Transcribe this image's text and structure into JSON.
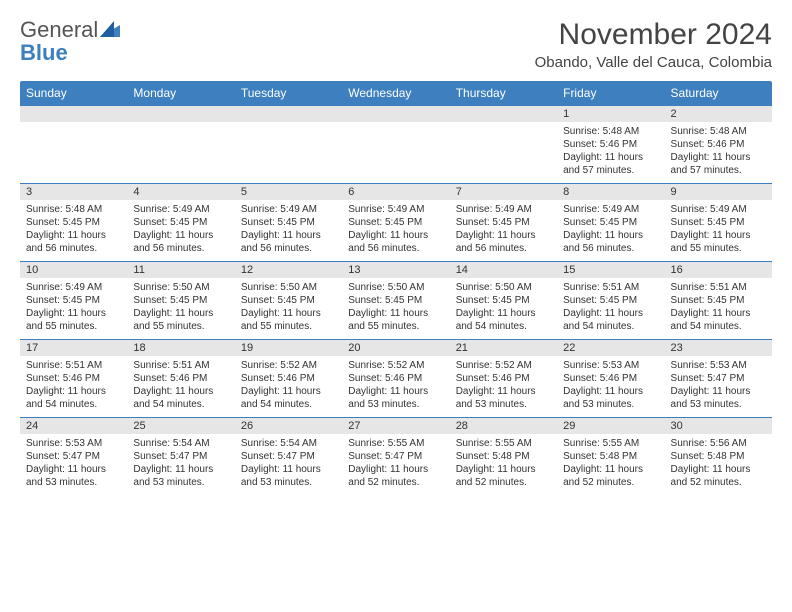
{
  "brand": {
    "line1": "General",
    "line2": "Blue"
  },
  "title": "November 2024",
  "location": "Obando, Valle del Cauca, Colombia",
  "colors": {
    "header_bg": "#3d7fbf",
    "header_text": "#ffffff",
    "daynum_bg": "#e6e6e6",
    "row_divider": "#3d7fbf",
    "body_text": "#333333",
    "page_bg": "#ffffff"
  },
  "typography": {
    "title_fontsize": 30,
    "location_fontsize": 15,
    "dayheader_fontsize": 12,
    "daynum_fontsize": 11,
    "cell_fontsize": 10
  },
  "day_headers": [
    "Sunday",
    "Monday",
    "Tuesday",
    "Wednesday",
    "Thursday",
    "Friday",
    "Saturday"
  ],
  "weeks": [
    [
      {
        "n": "",
        "lines": []
      },
      {
        "n": "",
        "lines": []
      },
      {
        "n": "",
        "lines": []
      },
      {
        "n": "",
        "lines": []
      },
      {
        "n": "",
        "lines": []
      },
      {
        "n": "1",
        "lines": [
          "Sunrise: 5:48 AM",
          "Sunset: 5:46 PM",
          "Daylight: 11 hours and 57 minutes."
        ]
      },
      {
        "n": "2",
        "lines": [
          "Sunrise: 5:48 AM",
          "Sunset: 5:46 PM",
          "Daylight: 11 hours and 57 minutes."
        ]
      }
    ],
    [
      {
        "n": "3",
        "lines": [
          "Sunrise: 5:48 AM",
          "Sunset: 5:45 PM",
          "Daylight: 11 hours and 56 minutes."
        ]
      },
      {
        "n": "4",
        "lines": [
          "Sunrise: 5:49 AM",
          "Sunset: 5:45 PM",
          "Daylight: 11 hours and 56 minutes."
        ]
      },
      {
        "n": "5",
        "lines": [
          "Sunrise: 5:49 AM",
          "Sunset: 5:45 PM",
          "Daylight: 11 hours and 56 minutes."
        ]
      },
      {
        "n": "6",
        "lines": [
          "Sunrise: 5:49 AM",
          "Sunset: 5:45 PM",
          "Daylight: 11 hours and 56 minutes."
        ]
      },
      {
        "n": "7",
        "lines": [
          "Sunrise: 5:49 AM",
          "Sunset: 5:45 PM",
          "Daylight: 11 hours and 56 minutes."
        ]
      },
      {
        "n": "8",
        "lines": [
          "Sunrise: 5:49 AM",
          "Sunset: 5:45 PM",
          "Daylight: 11 hours and 56 minutes."
        ]
      },
      {
        "n": "9",
        "lines": [
          "Sunrise: 5:49 AM",
          "Sunset: 5:45 PM",
          "Daylight: 11 hours and 55 minutes."
        ]
      }
    ],
    [
      {
        "n": "10",
        "lines": [
          "Sunrise: 5:49 AM",
          "Sunset: 5:45 PM",
          "Daylight: 11 hours and 55 minutes."
        ]
      },
      {
        "n": "11",
        "lines": [
          "Sunrise: 5:50 AM",
          "Sunset: 5:45 PM",
          "Daylight: 11 hours and 55 minutes."
        ]
      },
      {
        "n": "12",
        "lines": [
          "Sunrise: 5:50 AM",
          "Sunset: 5:45 PM",
          "Daylight: 11 hours and 55 minutes."
        ]
      },
      {
        "n": "13",
        "lines": [
          "Sunrise: 5:50 AM",
          "Sunset: 5:45 PM",
          "Daylight: 11 hours and 55 minutes."
        ]
      },
      {
        "n": "14",
        "lines": [
          "Sunrise: 5:50 AM",
          "Sunset: 5:45 PM",
          "Daylight: 11 hours and 54 minutes."
        ]
      },
      {
        "n": "15",
        "lines": [
          "Sunrise: 5:51 AM",
          "Sunset: 5:45 PM",
          "Daylight: 11 hours and 54 minutes."
        ]
      },
      {
        "n": "16",
        "lines": [
          "Sunrise: 5:51 AM",
          "Sunset: 5:45 PM",
          "Daylight: 11 hours and 54 minutes."
        ]
      }
    ],
    [
      {
        "n": "17",
        "lines": [
          "Sunrise: 5:51 AM",
          "Sunset: 5:46 PM",
          "Daylight: 11 hours and 54 minutes."
        ]
      },
      {
        "n": "18",
        "lines": [
          "Sunrise: 5:51 AM",
          "Sunset: 5:46 PM",
          "Daylight: 11 hours and 54 minutes."
        ]
      },
      {
        "n": "19",
        "lines": [
          "Sunrise: 5:52 AM",
          "Sunset: 5:46 PM",
          "Daylight: 11 hours and 54 minutes."
        ]
      },
      {
        "n": "20",
        "lines": [
          "Sunrise: 5:52 AM",
          "Sunset: 5:46 PM",
          "Daylight: 11 hours and 53 minutes."
        ]
      },
      {
        "n": "21",
        "lines": [
          "Sunrise: 5:52 AM",
          "Sunset: 5:46 PM",
          "Daylight: 11 hours and 53 minutes."
        ]
      },
      {
        "n": "22",
        "lines": [
          "Sunrise: 5:53 AM",
          "Sunset: 5:46 PM",
          "Daylight: 11 hours and 53 minutes."
        ]
      },
      {
        "n": "23",
        "lines": [
          "Sunrise: 5:53 AM",
          "Sunset: 5:47 PM",
          "Daylight: 11 hours and 53 minutes."
        ]
      }
    ],
    [
      {
        "n": "24",
        "lines": [
          "Sunrise: 5:53 AM",
          "Sunset: 5:47 PM",
          "Daylight: 11 hours and 53 minutes."
        ]
      },
      {
        "n": "25",
        "lines": [
          "Sunrise: 5:54 AM",
          "Sunset: 5:47 PM",
          "Daylight: 11 hours and 53 minutes."
        ]
      },
      {
        "n": "26",
        "lines": [
          "Sunrise: 5:54 AM",
          "Sunset: 5:47 PM",
          "Daylight: 11 hours and 53 minutes."
        ]
      },
      {
        "n": "27",
        "lines": [
          "Sunrise: 5:55 AM",
          "Sunset: 5:47 PM",
          "Daylight: 11 hours and 52 minutes."
        ]
      },
      {
        "n": "28",
        "lines": [
          "Sunrise: 5:55 AM",
          "Sunset: 5:48 PM",
          "Daylight: 11 hours and 52 minutes."
        ]
      },
      {
        "n": "29",
        "lines": [
          "Sunrise: 5:55 AM",
          "Sunset: 5:48 PM",
          "Daylight: 11 hours and 52 minutes."
        ]
      },
      {
        "n": "30",
        "lines": [
          "Sunrise: 5:56 AM",
          "Sunset: 5:48 PM",
          "Daylight: 11 hours and 52 minutes."
        ]
      }
    ]
  ]
}
